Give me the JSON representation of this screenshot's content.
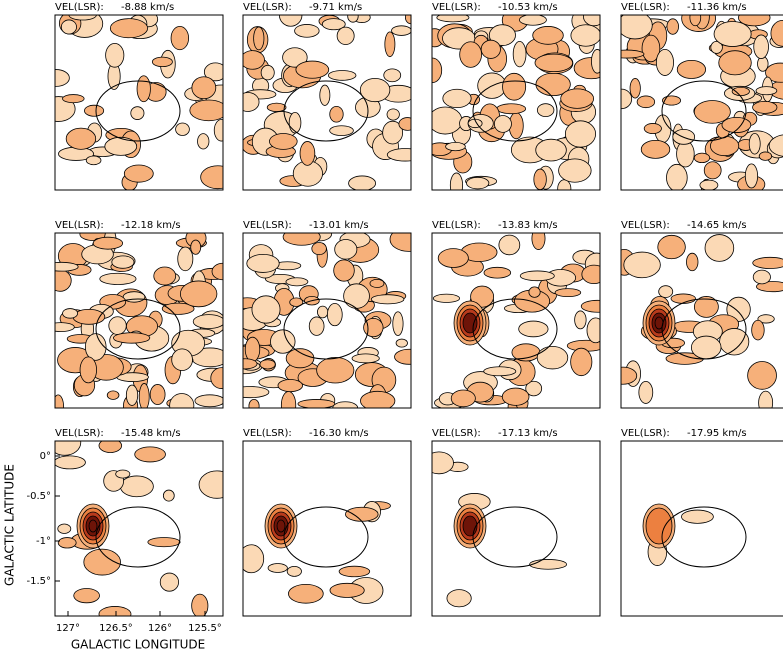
{
  "panels": [
    {
      "label": "VEL(LSR):",
      "velocity": "-8.88 km/s"
    },
    {
      "label": "VEL(LSR):",
      "velocity": "-9.71 km/s"
    },
    {
      "label": "VEL(LSR):",
      "velocity": "-10.53 km/s"
    },
    {
      "label": "VEL(LSR):",
      "velocity": "-11.36 km/s"
    },
    {
      "label": "VEL(LSR):",
      "velocity": "-12.18 km/s"
    },
    {
      "label": "VEL(LSR):",
      "velocity": "-13.01 km/s"
    },
    {
      "label": "VEL(LSR):",
      "velocity": "-13.83 km/s"
    },
    {
      "label": "VEL(LSR):",
      "velocity": "-14.65 km/s"
    },
    {
      "label": "VEL(LSR):",
      "velocity": "-15.48 km/s"
    },
    {
      "label": "VEL(LSR):",
      "velocity": "-16.30 km/s"
    },
    {
      "label": "VEL(LSR):",
      "velocity": "-17.13 km/s"
    },
    {
      "label": "VEL(LSR):",
      "velocity": "-17.95 km/s"
    }
  ],
  "axes": {
    "xlabel": "GALACTIC LONGITUDE",
    "ylabel": "GALACTIC LATITUDE",
    "xticks": [
      "127°",
      "126.5°",
      "126°",
      "125.5°"
    ],
    "yticks": [
      "0°",
      "-0.5°",
      "-1°",
      "-1.5°"
    ]
  }
}
